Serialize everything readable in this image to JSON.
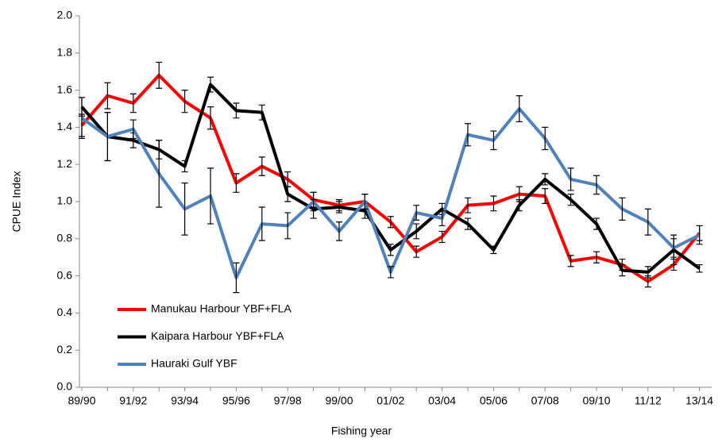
{
  "chart_data": {
    "type": "line",
    "x_label": "Fishing year",
    "y_label": "CPUE  Index",
    "categories": [
      "89/90",
      null,
      "91/92",
      null,
      "93/94",
      null,
      "95/96",
      null,
      "97/98",
      null,
      "99/00",
      null,
      "01/02",
      null,
      "03/04",
      null,
      "05/06",
      null,
      "07/08",
      null,
      "09/10",
      null,
      "11/12",
      null,
      "13/14"
    ],
    "ylim": [
      0,
      2
    ],
    "yticks": [
      {
        "value": 0,
        "label": "0.0"
      },
      0.2,
      0.4,
      0.6,
      0.8,
      {
        "value": 1,
        "label": "1.0"
      },
      1.2,
      1.4,
      1.6,
      1.8,
      {
        "value": 2,
        "label": "2.0"
      }
    ],
    "legend": "lower left",
    "series": [
      {
        "name": "Manukau Harbour YBF+FLA",
        "color": "#ff0000",
        "values": [
          1.41,
          1.57,
          1.53,
          1.68,
          1.54,
          1.45,
          1.1,
          1.19,
          1.12,
          1.01,
          0.98,
          1.0,
          0.89,
          0.73,
          0.81,
          0.98,
          0.99,
          1.04,
          1.03,
          0.68,
          0.7,
          0.66,
          0.57,
          0.66,
          0.83
        ],
        "errors": [
          0.06,
          0.07,
          0.05,
          0.07,
          0.06,
          0.06,
          0.05,
          0.05,
          0.04,
          0.04,
          0.03,
          0.04,
          0.03,
          0.03,
          0.03,
          0.04,
          0.04,
          0.04,
          0.04,
          0.03,
          0.03,
          0.03,
          0.03,
          0.03,
          0.04
        ]
      },
      {
        "name": "Kaipara Harbour YBF+FLA",
        "color": "#000000",
        "values": [
          1.51,
          1.35,
          1.33,
          1.28,
          1.19,
          1.63,
          1.49,
          1.48,
          1.04,
          0.96,
          0.97,
          0.95,
          0.74,
          0.84,
          0.96,
          0.88,
          0.74,
          0.98,
          1.12,
          1.01,
          0.88,
          0.63,
          0.62,
          0.74,
          0.64
        ],
        "errors": [
          0.05,
          0.13,
          0.04,
          0.05,
          0.03,
          0.04,
          0.04,
          0.04,
          0.04,
          0.05,
          0.03,
          0.04,
          0.03,
          0.04,
          0.03,
          0.03,
          0.02,
          0.03,
          0.03,
          0.03,
          0.03,
          0.03,
          0.03,
          0.08,
          0.02
        ]
      },
      {
        "name": "Hauraki Gulf YBF",
        "color": "#4f81bd",
        "values": [
          1.45,
          1.35,
          1.39,
          1.15,
          0.96,
          1.03,
          0.59,
          0.88,
          0.87,
          1.0,
          0.84,
          1.0,
          0.62,
          0.94,
          0.91,
          1.36,
          1.33,
          1.5,
          1.34,
          1.12,
          1.09,
          0.96,
          0.89,
          0.75,
          0.82
        ],
        "errors": [
          0.11,
          0.13,
          0.05,
          0.18,
          0.14,
          0.15,
          0.08,
          0.09,
          0.07,
          0.05,
          0.05,
          0.04,
          0.03,
          0.04,
          0.04,
          0.06,
          0.05,
          0.07,
          0.06,
          0.06,
          0.05,
          0.06,
          0.07,
          0.05,
          0.05
        ]
      }
    ]
  }
}
